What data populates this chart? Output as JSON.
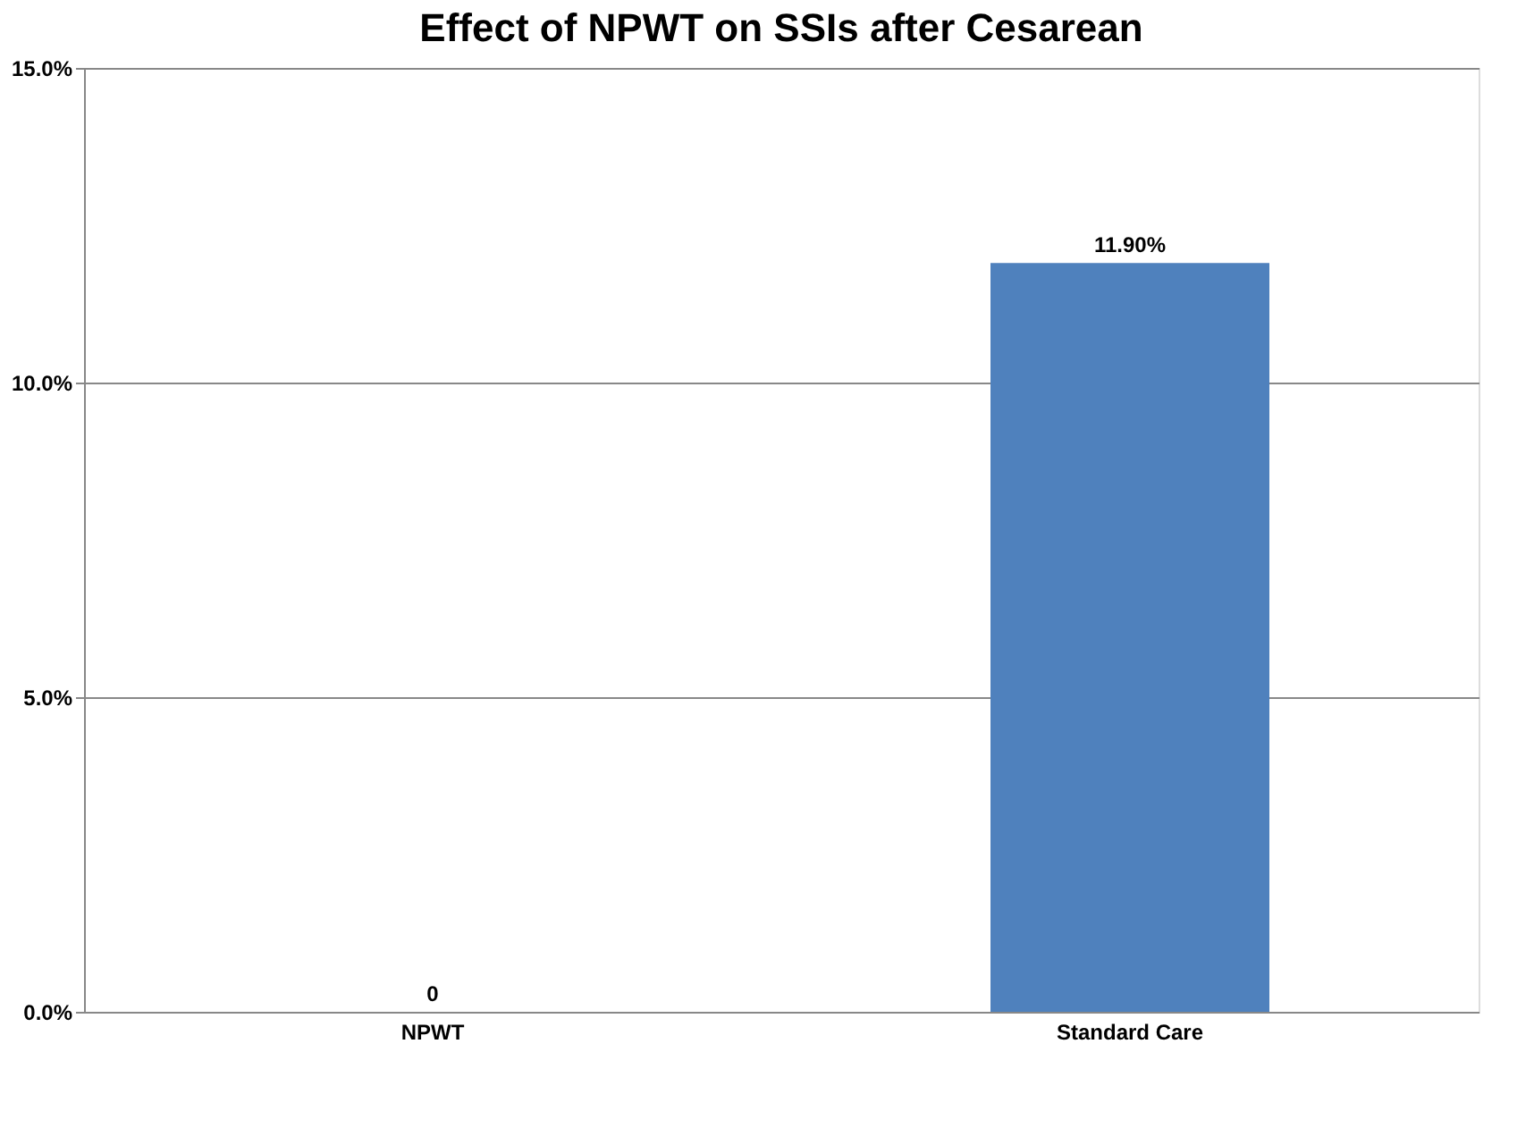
{
  "chart_data": {
    "type": "bar",
    "title": "Effect of NPWT on SSIs after Cesarean",
    "categories": [
      "NPWT",
      "Standard Care"
    ],
    "values": [
      0,
      11.9
    ],
    "value_labels": [
      "0",
      "11.90%"
    ],
    "color": "#4f81bd",
    "ylim": [
      0,
      15
    ],
    "yticks": [
      {
        "value": 0,
        "label": "0.0%"
      },
      {
        "value": 5,
        "label": "5.0%"
      },
      {
        "value": 10,
        "label": "10.0%"
      },
      {
        "value": 15,
        "label": "15.0%"
      }
    ],
    "grid": "y"
  }
}
